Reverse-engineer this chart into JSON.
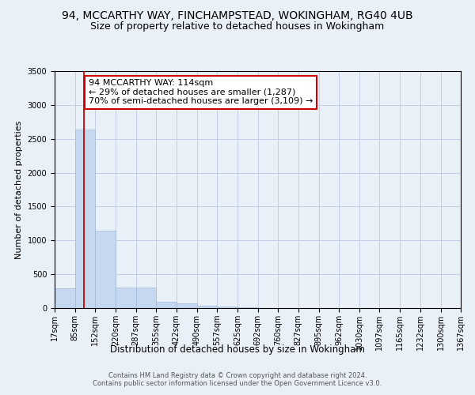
{
  "title_line1": "94, MCCARTHY WAY, FINCHAMPSTEAD, WOKINGHAM, RG40 4UB",
  "title_line2": "Size of property relative to detached houses in Wokingham",
  "xlabel": "Distribution of detached houses by size in Wokingham",
  "ylabel": "Number of detached properties",
  "annotation_line1": "94 MCCARTHY WAY: 114sqm",
  "annotation_line2": "← 29% of detached houses are smaller (1,287)",
  "annotation_line3": "70% of semi-detached houses are larger (3,109) →",
  "bar_edges": [
    17,
    85,
    152,
    220,
    287,
    355,
    422,
    490,
    557,
    625,
    692,
    760,
    827,
    895,
    962,
    1030,
    1097,
    1165,
    1232,
    1300,
    1367
  ],
  "bar_values": [
    290,
    2640,
    1140,
    305,
    305,
    95,
    65,
    35,
    25,
    10,
    5,
    3,
    2,
    1,
    1,
    1,
    0,
    0,
    0,
    0
  ],
  "bar_color": "#c5d8f0",
  "bar_edge_color": "#a0b8d8",
  "property_line_x": 114,
  "property_line_color": "#cc0000",
  "annotation_box_color": "#ffffff",
  "annotation_box_edge_color": "#cc0000",
  "ylim": [
    0,
    3500
  ],
  "yticks": [
    0,
    500,
    1000,
    1500,
    2000,
    2500,
    3000,
    3500
  ],
  "grid_color": "#c0d0e8",
  "background_color": "#eaf0f8",
  "axes_bg_color": "#eaf0f8",
  "footer_line1": "Contains HM Land Registry data © Crown copyright and database right 2024.",
  "footer_line2": "Contains public sector information licensed under the Open Government Licence v3.0.",
  "title_fontsize": 10,
  "subtitle_fontsize": 9,
  "tick_fontsize": 7,
  "ylabel_fontsize": 8,
  "xlabel_fontsize": 8.5,
  "footer_fontsize": 6,
  "annot_fontsize": 8
}
